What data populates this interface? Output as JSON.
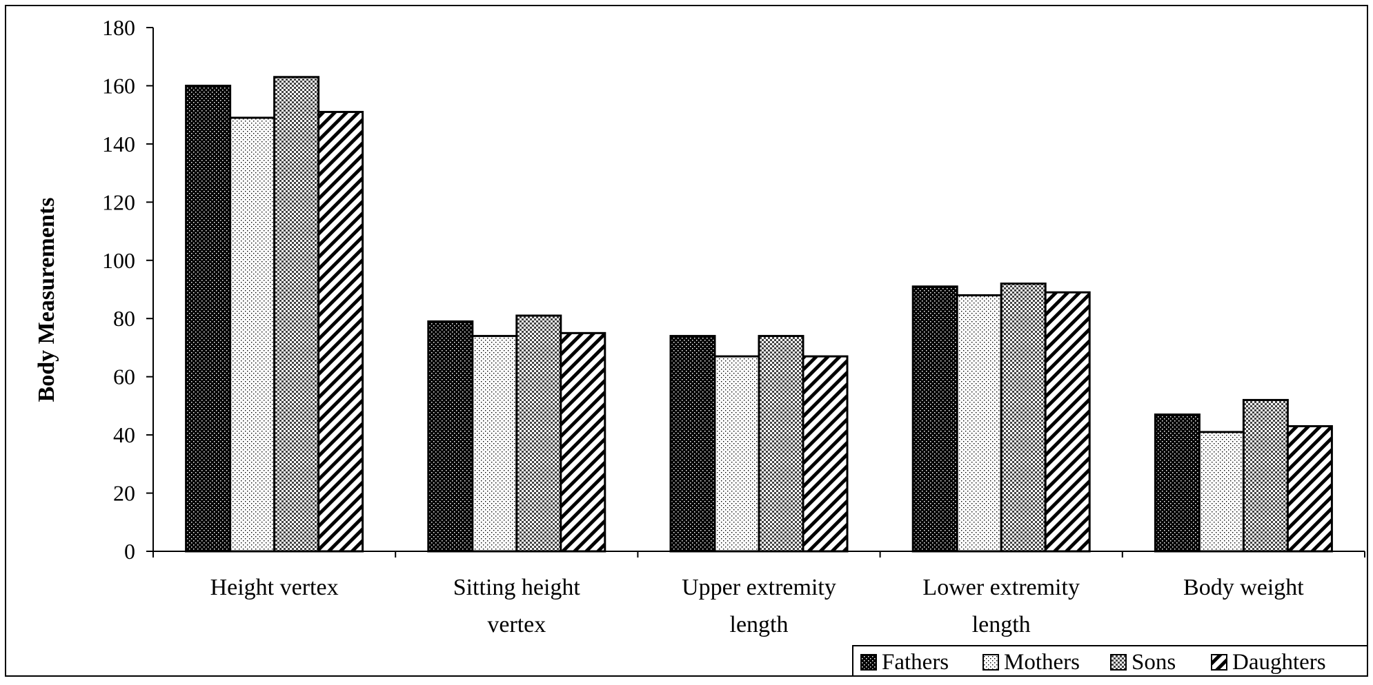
{
  "chart_data": {
    "type": "bar",
    "title": "",
    "xlabel": "",
    "ylabel": "Body Measurements",
    "ylim": [
      0,
      180
    ],
    "yticks": [
      0,
      20,
      40,
      60,
      80,
      100,
      120,
      140,
      160,
      180
    ],
    "categories": [
      [
        "Height vertex"
      ],
      [
        "Sitting height",
        "vertex"
      ],
      [
        "Upper extremity",
        "length"
      ],
      [
        "Lower extremity",
        "length"
      ],
      [
        "Body weight"
      ]
    ],
    "series": [
      {
        "name": "Fathers",
        "pattern": "dots-dark",
        "values": [
          160,
          79,
          74,
          91,
          47
        ]
      },
      {
        "name": "Mothers",
        "pattern": "dots-light",
        "values": [
          149,
          74,
          67,
          88,
          41
        ]
      },
      {
        "name": "Sons",
        "pattern": "checker",
        "values": [
          163,
          81,
          74,
          92,
          52
        ]
      },
      {
        "name": "Daughters",
        "pattern": "diagonal",
        "values": [
          151,
          75,
          67,
          89,
          43
        ]
      }
    ],
    "legend_position": "bottom-right",
    "grid": false,
    "colors": {
      "frame": "#000000",
      "background": "#ffffff"
    }
  }
}
